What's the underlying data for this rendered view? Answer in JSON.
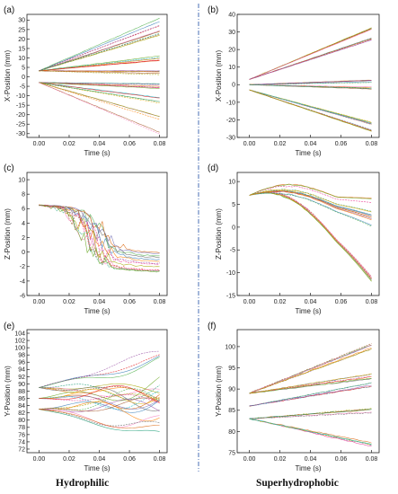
{
  "labels": {
    "left": "Hydrophilic",
    "right": "Superhydrophobic"
  },
  "chart_data": [
    {
      "panel": "(a)",
      "type": "line",
      "xlabel": "Time (s)",
      "ylabel": "X-Position (mm)",
      "xlim": [
        -0.008,
        0.085
      ],
      "ylim": [
        -32,
        33
      ],
      "xticks": [
        0.0,
        0.02,
        0.04,
        0.06,
        0.08
      ],
      "yticks": [
        -30,
        -25,
        -20,
        -15,
        -10,
        -5,
        0,
        5,
        10,
        15,
        20,
        25,
        30
      ],
      "bands": [
        {
          "start": 3.2,
          "end": 29,
          "spread": 2.0,
          "count": 4
        },
        {
          "start": 3.2,
          "end": 23,
          "spread": 1.8,
          "count": 6
        },
        {
          "start": 3.2,
          "end": 10,
          "spread": 1.5,
          "count": 7
        },
        {
          "start": 3.2,
          "end": 2,
          "spread": 2.0,
          "count": 6
        },
        {
          "start": -3.0,
          "end": -5,
          "spread": 2.0,
          "count": 7
        },
        {
          "start": -3.0,
          "end": -12,
          "spread": 2.0,
          "count": 5
        },
        {
          "start": -3.0,
          "end": -22,
          "spread": 2.5,
          "count": 3
        },
        {
          "start": -3.0,
          "end": -30,
          "spread": 1.0,
          "count": 2
        }
      ]
    },
    {
      "panel": "(b)",
      "type": "line",
      "xlabel": "Time (s)",
      "ylabel": "X-Position (mm)",
      "xlim": [
        -0.008,
        0.085
      ],
      "ylim": [
        -30,
        40
      ],
      "xticks": [
        0.0,
        0.02,
        0.04,
        0.06,
        0.08
      ],
      "yticks": [
        -30,
        -20,
        -10,
        0,
        10,
        20,
        30,
        40
      ],
      "bands": [
        {
          "start": 3,
          "end": 32,
          "spread": 0.8,
          "count": 8
        },
        {
          "start": 3,
          "end": 26,
          "spread": 0.6,
          "count": 5
        },
        {
          "start": 0,
          "end": 2,
          "spread": 0.8,
          "count": 7
        },
        {
          "start": 0,
          "end": -2,
          "spread": 0.8,
          "count": 6
        },
        {
          "start": -3,
          "end": -22,
          "spread": 0.8,
          "count": 6
        },
        {
          "start": -3,
          "end": -26,
          "spread": 0.6,
          "count": 6
        }
      ]
    },
    {
      "panel": "(c)",
      "type": "line",
      "xlabel": "Time (s)",
      "ylabel": "Z-Position (mm)",
      "xlim": [
        -0.008,
        0.085
      ],
      "ylim": [
        -6,
        11
      ],
      "xticks": [
        0.0,
        0.02,
        0.04,
        0.06,
        0.08
      ],
      "yticks": [
        -6,
        -4,
        -2,
        0,
        2,
        4,
        6,
        8,
        10
      ],
      "bands": [
        {
          "start": 6.5,
          "end": -1,
          "spread": 1.6,
          "count": 14,
          "shape": "fall",
          "t0": 0.035,
          "peak": 6.5
        }
      ]
    },
    {
      "panel": "(d)",
      "type": "line",
      "xlabel": "Time (s)",
      "ylabel": "Z-Position (mm)",
      "xlim": [
        -0.008,
        0.085
      ],
      "ylim": [
        -15,
        12
      ],
      "xticks": [
        0.0,
        0.02,
        0.04,
        0.06,
        0.08
      ],
      "yticks": [
        -15,
        -10,
        -5,
        0,
        5,
        10
      ],
      "bands": [
        {
          "start": 7,
          "end": -11.5,
          "spread": 0.8,
          "count": 8,
          "shape": "arch",
          "peak": 9
        },
        {
          "start": 7,
          "end": 4,
          "spread": 2.5,
          "count": 9,
          "shape": "arch",
          "peak": 9
        },
        {
          "start": 7,
          "end": 1.5,
          "spread": 1.5,
          "count": 5,
          "shape": "arch",
          "peak": 8.5
        }
      ]
    },
    {
      "panel": "(e)",
      "type": "line",
      "xlabel": "Time (s)",
      "ylabel": "Y-Position (mm)",
      "xlim": [
        -0.008,
        0.085
      ],
      "ylim": [
        71,
        105
      ],
      "xticks": [
        0.0,
        0.02,
        0.04,
        0.06,
        0.08
      ],
      "yticks": [
        72,
        74,
        76,
        78,
        80,
        82,
        84,
        86,
        88,
        90,
        92,
        94,
        96,
        98,
        100,
        102,
        104
      ],
      "bands": [
        {
          "start": 89,
          "end": 97,
          "spread": 2.0,
          "count": 4,
          "shape": "wave"
        },
        {
          "start": 89,
          "end": 87,
          "spread": 3.0,
          "count": 6,
          "shape": "wave"
        },
        {
          "start": 86,
          "end": 87,
          "spread": 3.0,
          "count": 7,
          "shape": "wave"
        },
        {
          "start": 83,
          "end": 86,
          "spread": 3.0,
          "count": 6,
          "shape": "wave"
        },
        {
          "start": 83,
          "end": 76,
          "spread": 2.5,
          "count": 4,
          "shape": "wave"
        }
      ]
    },
    {
      "panel": "(f)",
      "type": "line",
      "xlabel": "Time (s)",
      "ylabel": "Y-Position (mm)",
      "xlim": [
        -0.008,
        0.085
      ],
      "ylim": [
        75,
        104
      ],
      "xticks": [
        0.0,
        0.02,
        0.04,
        0.06,
        0.08
      ],
      "yticks": [
        75,
        80,
        85,
        90,
        95,
        100
      ],
      "bands": [
        {
          "start": 89,
          "end": 100,
          "spread": 0.8,
          "count": 8
        },
        {
          "start": 89,
          "end": 93,
          "spread": 0.6,
          "count": 7
        },
        {
          "start": 86,
          "end": 91,
          "spread": 0.6,
          "count": 5
        },
        {
          "start": 83,
          "end": 85,
          "spread": 0.6,
          "count": 6
        },
        {
          "start": 83,
          "end": 77,
          "spread": 0.6,
          "count": 6
        }
      ]
    }
  ]
}
